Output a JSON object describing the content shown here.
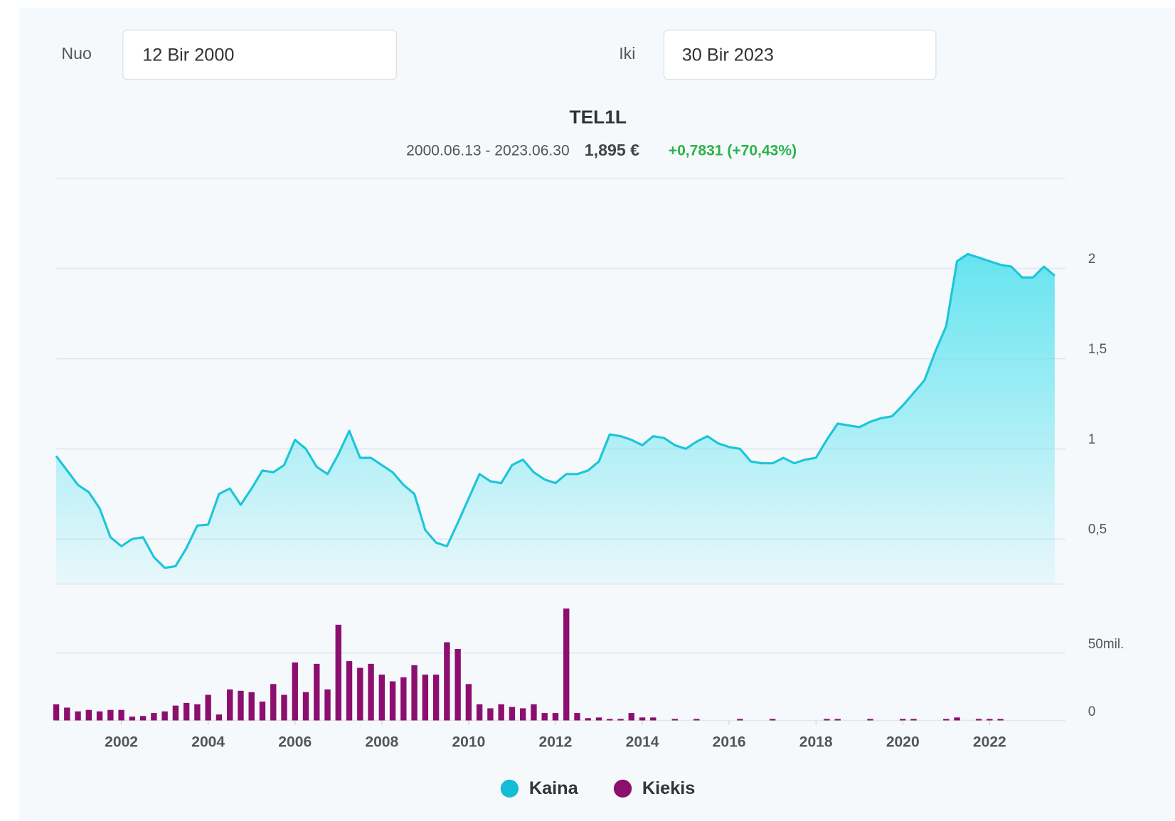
{
  "form": {
    "from_label": "Nuo",
    "from_value": "12 Bir 2000",
    "to_label": "Iki",
    "to_value": "30 Bir 2023"
  },
  "chart_data": [
    {
      "type": "area",
      "title": "TEL1L",
      "range": "2000.06.13 - 2023.06.30",
      "price": "1,895 €",
      "change": "+0,7831 (+70,43%)",
      "x": [
        2000.5,
        2000.75,
        2001,
        2001.25,
        2001.5,
        2001.75,
        2002,
        2002.25,
        2002.5,
        2002.75,
        2003,
        2003.25,
        2003.5,
        2003.75,
        2004,
        2004.25,
        2004.5,
        2004.75,
        2005,
        2005.25,
        2005.5,
        2005.75,
        2006,
        2006.25,
        2006.5,
        2006.75,
        2007,
        2007.25,
        2007.5,
        2007.75,
        2008,
        2008.25,
        2008.5,
        2008.75,
        2009,
        2009.25,
        2009.5,
        2009.75,
        2010,
        2010.25,
        2010.5,
        2010.75,
        2011,
        2011.25,
        2011.5,
        2011.75,
        2012,
        2012.25,
        2012.5,
        2012.75,
        2013,
        2013.25,
        2013.5,
        2013.75,
        2014,
        2014.25,
        2014.5,
        2014.75,
        2015,
        2015.25,
        2015.5,
        2015.75,
        2016,
        2016.25,
        2016.5,
        2016.75,
        2017,
        2017.25,
        2017.5,
        2017.75,
        2018,
        2018.25,
        2018.5,
        2018.75,
        2019,
        2019.25,
        2019.5,
        2019.75,
        2020,
        2020.25,
        2020.5,
        2020.75,
        2021,
        2021.25,
        2021.5,
        2021.75,
        2022,
        2022.25,
        2022.5,
        2022.75,
        2023,
        2023.25,
        2023.5
      ],
      "series": [
        {
          "name": "Kaina",
          "color": "#1cc6d8",
          "values": [
            0.96,
            0.88,
            0.8,
            0.76,
            0.67,
            0.51,
            0.46,
            0.5,
            0.51,
            0.4,
            0.34,
            0.35,
            0.45,
            0.575,
            0.58,
            0.75,
            0.78,
            0.69,
            0.78,
            0.88,
            0.87,
            0.91,
            1.05,
            1.0,
            0.9,
            0.86,
            0.97,
            1.1,
            0.95,
            0.95,
            0.91,
            0.87,
            0.8,
            0.75,
            0.55,
            0.48,
            0.46,
            0.59,
            0.725,
            0.86,
            0.82,
            0.81,
            0.91,
            0.94,
            0.87,
            0.83,
            0.81,
            0.86,
            0.86,
            0.88,
            0.93,
            1.08,
            1.07,
            1.05,
            1.02,
            1.07,
            1.06,
            1.02,
            1.0,
            1.04,
            1.07,
            1.03,
            1.01,
            1.0,
            0.93,
            0.92,
            0.92,
            0.95,
            0.92,
            0.94,
            0.95,
            1.05,
            1.14,
            1.13,
            1.12,
            1.15,
            1.17,
            1.18,
            1.24,
            1.31,
            1.38,
            1.54,
            1.68,
            2.04,
            2.08,
            2.06,
            2.04,
            2.02,
            2.01,
            1.95,
            1.95,
            2.01,
            1.96
          ]
        }
      ],
      "xlim": [
        2000.5,
        2023.75
      ],
      "ylim": [
        0.25,
        2.5
      ],
      "yticks": [
        {
          "value": 0.5,
          "label": "0,5"
        },
        1,
        {
          "value": 1.5,
          "label": "1,5"
        },
        2
      ],
      "grid": true
    },
    {
      "type": "bar",
      "x": [
        2000.5,
        2000.75,
        2001,
        2001.25,
        2001.5,
        2001.75,
        2002,
        2002.25,
        2002.5,
        2002.75,
        2003,
        2003.25,
        2003.5,
        2003.75,
        2004,
        2004.25,
        2004.5,
        2004.75,
        2005,
        2005.25,
        2005.5,
        2005.75,
        2006,
        2006.25,
        2006.5,
        2006.75,
        2007,
        2007.25,
        2007.5,
        2007.75,
        2008,
        2008.25,
        2008.5,
        2008.75,
        2009,
        2009.25,
        2009.5,
        2009.75,
        2010,
        2010.25,
        2010.5,
        2010.75,
        2011,
        2011.25,
        2011.5,
        2011.75,
        2012,
        2012.25,
        2012.5,
        2012.75,
        2013,
        2013.25,
        2013.5,
        2013.75,
        2014,
        2014.25,
        2014.5,
        2014.75,
        2015,
        2015.25,
        2015.5,
        2015.75,
        2016,
        2016.25,
        2016.5,
        2016.75,
        2017,
        2017.25,
        2017.5,
        2017.75,
        2018,
        2018.25,
        2018.5,
        2018.75,
        2019,
        2019.25,
        2019.5,
        2019.75,
        2020,
        2020.25,
        2020.5,
        2020.75,
        2021,
        2021.25,
        2021.5,
        2021.75,
        2022,
        2022.25,
        2022.5,
        2022.75,
        2023,
        2023.25,
        2023.5
      ],
      "series": [
        {
          "name": "Kiekis",
          "color": "#8c0f6f",
          "values": [
            12,
            9.5,
            6.7,
            7.8,
            6.7,
            7.8,
            7.8,
            2.8,
            3.3,
            5.5,
            6.7,
            11,
            13,
            12,
            19,
            4.4,
            23,
            22,
            21,
            14,
            27,
            19,
            43,
            21,
            42,
            23,
            71,
            44,
            39,
            42,
            34,
            29,
            32,
            41,
            34,
            34,
            58,
            53,
            27,
            12,
            9,
            12,
            10,
            9,
            12,
            5.5,
            5.5,
            83,
            5.5,
            1.7,
            2.2,
            1.1,
            1.1,
            5.5,
            2.2,
            2.2,
            0,
            1.1,
            0,
            1.1,
            0,
            0,
            0,
            1.1,
            0,
            0,
            1.1,
            0,
            0,
            0,
            0,
            1.1,
            1.1,
            0,
            0,
            1.1,
            0,
            0,
            1.1,
            1.1,
            0,
            0,
            1.1,
            2.2,
            0,
            1.1,
            1.1,
            1.1,
            null,
            null,
            null,
            null,
            null
          ]
        }
      ],
      "xlim": [
        2000.5,
        2023.75
      ],
      "ylim": [
        0,
        100
      ],
      "xticks": [
        2002,
        2004,
        2006,
        2008,
        2010,
        2012,
        2014,
        2016,
        2018,
        2020,
        2022
      ],
      "yticks": [
        0,
        {
          "value": 50,
          "label": "50mil."
        }
      ],
      "grid": true
    }
  ]
}
